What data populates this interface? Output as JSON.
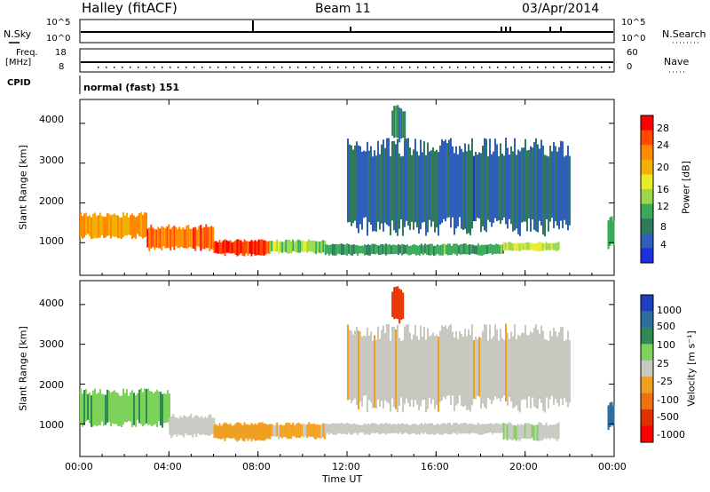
{
  "header": {
    "station": "Halley (fitACF)",
    "beam": "Beam 11",
    "date": "03/Apr/2014"
  },
  "top_panels": {
    "nsky_label": "N.Sky",
    "nsky_ticks": [
      "10^5",
      "10^0"
    ],
    "nsearch_label": "N.Search",
    "nsearch_ticks": [
      "10^5",
      "10^0"
    ],
    "freq_label_1": "Freq.",
    "freq_label_2": "[MHz]",
    "freq_ticks": [
      "18",
      "8"
    ],
    "nave_label": "Nave",
    "nave_ticks": [
      "60",
      "0"
    ],
    "cpid_label": "CPID",
    "cpid_value": "normal (fast) 151"
  },
  "power_panel": {
    "ylabel": "Slant Range [km]",
    "yticks": [
      "4000",
      "3000",
      "2000",
      "1000"
    ],
    "colorbar_label": "Power [dB]",
    "colorbar_ticks": [
      "28",
      "24",
      "20",
      "16",
      "12",
      "8",
      "4"
    ],
    "colorbar_colors": [
      "#ff0000",
      "#ff4a00",
      "#ff8a00",
      "#f2b000",
      "#e8ea2a",
      "#9ad84a",
      "#3aaa5a",
      "#2e7a5a",
      "#2f5fb8",
      "#1e2fe0"
    ]
  },
  "velocity_panel": {
    "ylabel": "Slant Range [km]",
    "yticks": [
      "4000",
      "3000",
      "2000",
      "1000"
    ],
    "colorbar_label": "Velocity [m s⁻¹]",
    "colorbar_ticks": [
      "1000",
      "500",
      "100",
      "25",
      "-25",
      "-100",
      "-500",
      "-1000"
    ],
    "colorbar_colors": [
      "#1f3fbf",
      "#2f6fa0",
      "#2e8a55",
      "#7dd35a",
      "#c8c8c0",
      "#f0a020",
      "#f07010",
      "#e03000",
      "#ff0000"
    ]
  },
  "x_axis": {
    "label": "Time UT",
    "ticks": [
      "00:00",
      "04:00",
      "08:00",
      "12:00",
      "16:00",
      "20:00",
      "00:00"
    ]
  },
  "chart_data": {
    "type": "heatmap",
    "title": "Halley (fitACF) Beam 11 03/Apr/2014",
    "xlabel": "Time UT",
    "ylabel": "Slant Range [km]",
    "xlim": [
      0,
      24
    ],
    "ylim": [
      180,
      4600
    ],
    "x_tick_values": [
      0,
      4,
      8,
      12,
      16,
      20,
      24
    ],
    "y_tick_values": [
      1000,
      2000,
      3000,
      4000
    ],
    "power": {
      "colorbar_range_db": [
        0,
        32
      ],
      "regions": [
        {
          "t0": 0.0,
          "t1": 3.0,
          "r0": 1150,
          "r1": 1700,
          "db": 22
        },
        {
          "t0": 3.0,
          "t1": 6.0,
          "r0": 850,
          "r1": 1400,
          "db": 26
        },
        {
          "t0": 6.0,
          "t1": 8.5,
          "r0": 700,
          "r1": 1050,
          "db": 28
        },
        {
          "t0": 8.5,
          "t1": 11.0,
          "r0": 750,
          "r1": 1050,
          "db": 14
        },
        {
          "t0": 11.0,
          "t1": 19.0,
          "r0": 700,
          "r1": 950,
          "db": 10
        },
        {
          "t0": 19.0,
          "t1": 21.5,
          "r0": 800,
          "r1": 1000,
          "db": 16
        },
        {
          "t0": 12.0,
          "t1": 22.0,
          "r0": 1400,
          "r1": 3400,
          "db": 6
        },
        {
          "t0": 14.0,
          "t1": 14.6,
          "r0": 3600,
          "r1": 4400,
          "db": 8
        },
        {
          "t0": 23.7,
          "t1": 24.0,
          "r0": 900,
          "r1": 1600,
          "db": 10
        }
      ]
    },
    "velocity": {
      "colorbar_range_ms": [
        -1000,
        1000
      ],
      "regions": [
        {
          "t0": 0.0,
          "t1": 4.0,
          "r0": 1000,
          "r1": 1800,
          "v": 300
        },
        {
          "t0": 4.0,
          "t1": 6.0,
          "r0": 700,
          "r1": 1200,
          "v": 0
        },
        {
          "t0": 6.0,
          "t1": 8.5,
          "r0": 600,
          "r1": 1000,
          "v": -200
        },
        {
          "t0": 8.5,
          "t1": 11.0,
          "r0": 650,
          "r1": 1000,
          "v": -150
        },
        {
          "t0": 11.0,
          "t1": 19.0,
          "r0": 750,
          "r1": 1000,
          "v": 0
        },
        {
          "t0": 19.0,
          "t1": 21.5,
          "r0": 600,
          "r1": 1000,
          "v": 80
        },
        {
          "t0": 12.0,
          "t1": 22.0,
          "r0": 1500,
          "r1": 3300,
          "v": -60
        },
        {
          "t0": 14.0,
          "t1": 14.5,
          "r0": 3600,
          "r1": 4400,
          "v": -600
        },
        {
          "t0": 23.7,
          "t1": 24.0,
          "r0": 900,
          "r1": 1500,
          "v": 600
        }
      ]
    }
  }
}
